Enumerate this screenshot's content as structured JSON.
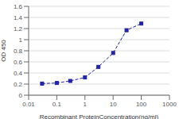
{
  "chart_data": {
    "type": "line",
    "x": [
      0.03,
      0.1,
      0.3,
      1,
      3,
      10,
      30,
      100
    ],
    "values": [
      0.209,
      0.22,
      0.257,
      0.32,
      0.51,
      0.76,
      1.17,
      1.29
    ],
    "color": "#2222aa",
    "marker": "square",
    "line_style": "dashed",
    "xlabel": "Recombinant ProteinConcentration(ng/ml)",
    "ylabel": "OD 450",
    "xlim": [
      0.01,
      1000
    ],
    "ylim": [
      0,
      1.6
    ],
    "xticks": [
      0.01,
      0.1,
      1,
      10,
      100,
      1000
    ],
    "yticks": [
      0,
      0.2,
      0.4,
      0.6,
      0.8,
      1,
      1.2,
      1.4,
      1.6
    ],
    "log": "x",
    "grid": true
  }
}
